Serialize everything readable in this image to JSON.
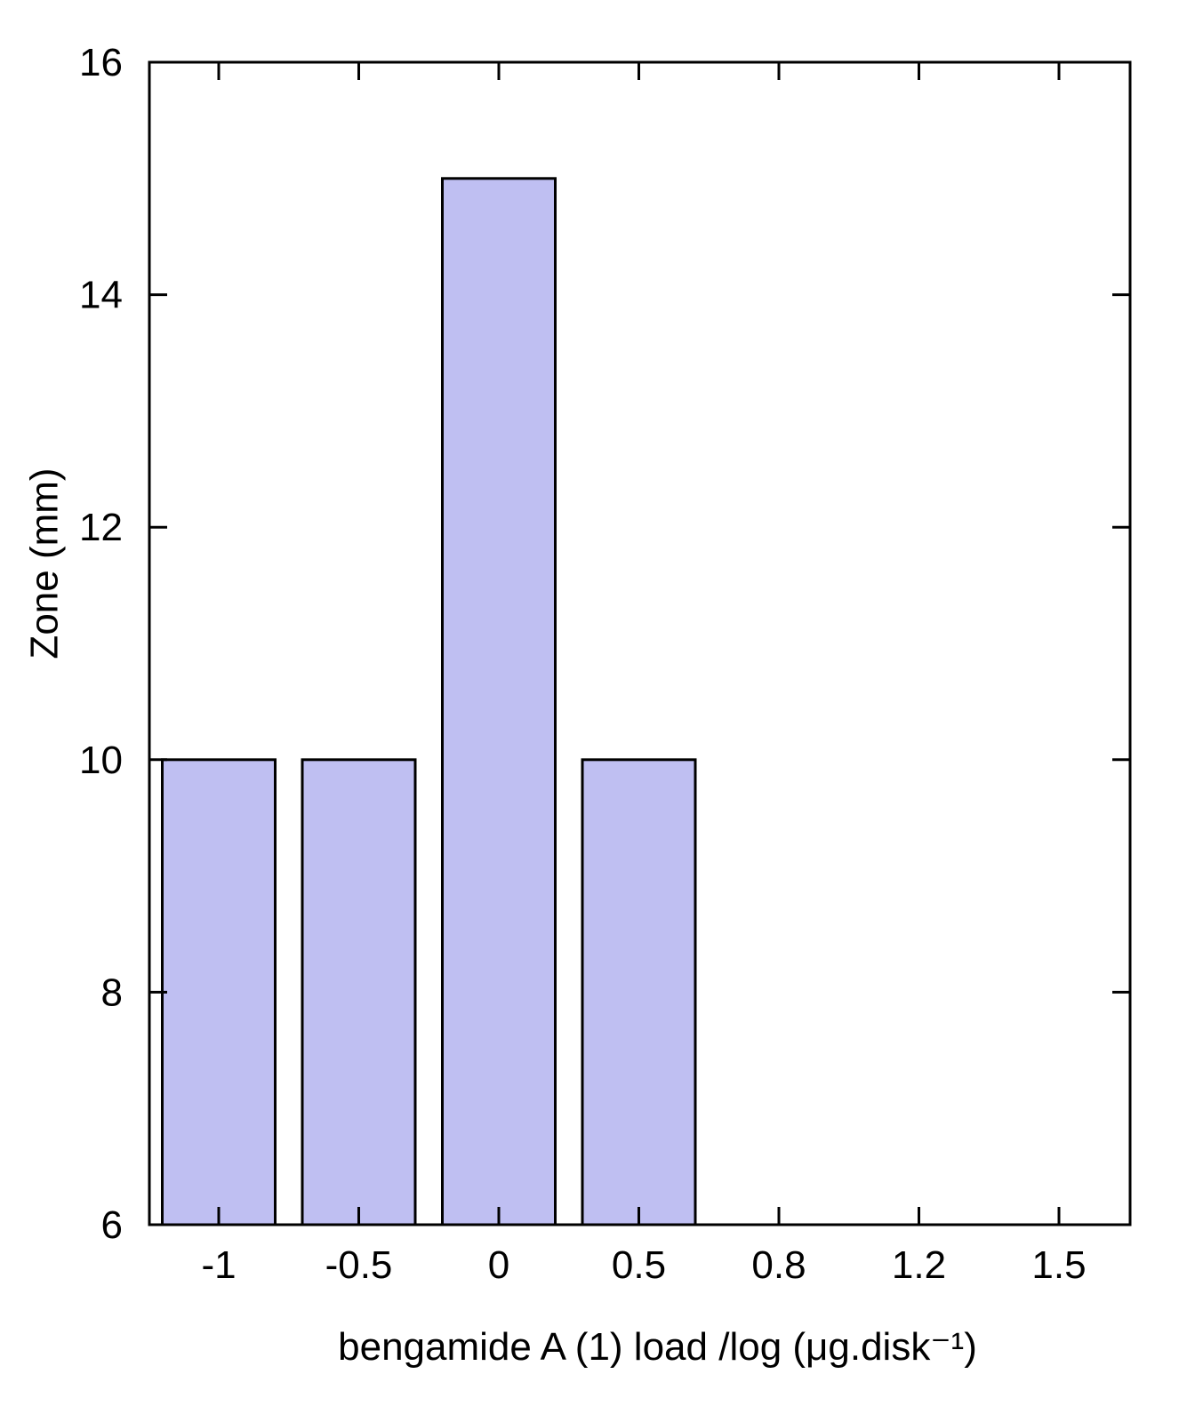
{
  "chart_data": {
    "type": "bar",
    "title": "",
    "xlabel": "bengamide A (1) load  /log (μg.disk⁻¹)",
    "ylabel": "Zone (mm)",
    "categories": [
      "-1",
      "-0.5",
      "0",
      "0.5",
      "0.8",
      "1.2",
      "1.5"
    ],
    "values": [
      10,
      10,
      15,
      10,
      6,
      6,
      6
    ],
    "ylim": [
      6,
      16
    ],
    "yticks": [
      6,
      8,
      10,
      12,
      14,
      16
    ],
    "grid": false,
    "legend": "none",
    "colors": {
      "bar_fill": "#bfbff2",
      "bar_stroke": "#000000",
      "axis": "#000000"
    }
  }
}
